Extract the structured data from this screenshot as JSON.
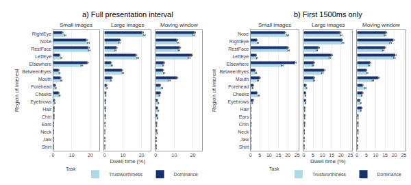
{
  "chart_data": [
    {
      "type": "bar",
      "orientation": "horizontal",
      "title": "Small images",
      "ylabel": "Region of interest",
      "categories": [
        "RightEye",
        "Nose",
        "RestFace",
        "LeftEye",
        "Elsewhere",
        "BetweenEyes",
        "Mouth",
        "Forehead",
        "Cheeks",
        "Eyebrows",
        "Hair",
        "Chin",
        "Ears",
        "Neck",
        "Jaw",
        "Shirt"
      ],
      "series": [
        {
          "name": "Trustworthiness",
          "color": "#add8e6",
          "values": [
            6.5,
            19.0,
            19.5,
            4.5,
            15.5,
            3.5,
            4.5,
            1.5,
            3.5,
            1.0,
            0.5,
            0.5,
            0.3,
            0.2,
            0.2,
            0.2
          ],
          "errors": [
            0.4,
            0.5,
            0.5,
            0.3,
            0.5,
            0.3,
            0.3,
            0.2,
            0.3,
            0.15,
            0.1,
            0.1,
            0.08,
            0.05,
            0.05,
            0.05
          ]
        },
        {
          "name": "Dominance",
          "color": "#19316b",
          "values": [
            5.0,
            18.0,
            19.0,
            3.5,
            18.5,
            3.0,
            4.0,
            1.2,
            3.0,
            0.8,
            0.4,
            0.4,
            0.3,
            0.2,
            0.2,
            0.2
          ],
          "errors": [
            0.35,
            0.5,
            0.5,
            0.3,
            0.5,
            0.25,
            0.3,
            0.2,
            0.28,
            0.12,
            0.1,
            0.1,
            0.08,
            0.05,
            0.05,
            0.05
          ]
        }
      ],
      "xlim": [
        0,
        25
      ],
      "xticks": [
        0,
        10,
        20
      ],
      "grid": true
    },
    {
      "type": "bar",
      "orientation": "horizontal",
      "title": "Large images",
      "xlabel": "Dwell time (%)",
      "annotations": [
        {
          "text": "a) Full presentation interval"
        }
      ],
      "tick_labels": "x",
      "categories": [
        "RightEye",
        "Nose",
        "RestFace",
        "LeftEye",
        "Elsewhere",
        "BetweenEyes",
        "Mouth",
        "Forehead",
        "Cheeks",
        "Eyebrows",
        "Hair",
        "Chin",
        "Ears",
        "Neck",
        "Jaw",
        "Shirt"
      ],
      "series": [
        {
          "name": "Trustworthiness",
          "color": "#add8e6",
          "values": [
            21.5,
            8.0,
            6.0,
            18.0,
            4.0,
            10.0,
            3.5,
            1.5,
            0.8,
            0.5,
            0.5,
            0.4,
            0.3,
            0.2,
            0.2,
            0.2
          ],
          "errors": [
            0.5,
            0.4,
            0.35,
            0.5,
            0.3,
            0.45,
            0.3,
            0.2,
            0.12,
            0.1,
            0.1,
            0.1,
            0.08,
            0.05,
            0.05,
            0.05
          ]
        },
        {
          "name": "Dominance",
          "color": "#19316b",
          "values": [
            20.5,
            8.5,
            6.5,
            17.0,
            3.5,
            9.5,
            4.0,
            1.2,
            0.8,
            0.5,
            0.4,
            0.4,
            0.3,
            0.2,
            0.2,
            0.2
          ],
          "errors": [
            0.5,
            0.4,
            0.35,
            0.5,
            0.28,
            0.42,
            0.3,
            0.18,
            0.12,
            0.1,
            0.1,
            0.1,
            0.08,
            0.05,
            0.05,
            0.05
          ]
        }
      ],
      "xlim": [
        0,
        25
      ],
      "xticks": [
        0,
        10,
        20
      ],
      "grid": true
    },
    {
      "type": "bar",
      "orientation": "horizontal",
      "title": "Moving window",
      "tick_labels": "x",
      "legend": "lower right",
      "legend_title": "Task",
      "categories": [
        "RightEye",
        "Nose",
        "RestFace",
        "LeftEye",
        "Elsewhere",
        "BetweenEyes",
        "Mouth",
        "Forehead",
        "Cheeks",
        "Eyebrows",
        "Hair",
        "Chin",
        "Ears",
        "Neck",
        "Jaw",
        "Shirt"
      ],
      "series": [
        {
          "name": "Trustworthiness",
          "color": "#add8e6",
          "values": [
            20.5,
            12.0,
            12.5,
            18.0,
            4.0,
            4.5,
            7.5,
            3.5,
            2.0,
            1.5,
            1.5,
            1.0,
            0.5,
            0.8,
            0.3,
            0.3
          ],
          "errors": [
            0.5,
            0.45,
            0.45,
            0.5,
            0.3,
            0.32,
            0.4,
            0.28,
            0.2,
            0.18,
            0.18,
            0.15,
            0.1,
            0.12,
            0.07,
            0.07
          ]
        },
        {
          "name": "Dominance",
          "color": "#19316b",
          "values": [
            21.0,
            11.5,
            13.0,
            19.5,
            4.5,
            4.0,
            11.5,
            2.5,
            2.5,
            1.0,
            1.0,
            0.8,
            0.5,
            0.5,
            0.3,
            0.3
          ],
          "errors": [
            0.5,
            0.45,
            0.45,
            0.5,
            0.32,
            0.3,
            0.5,
            0.22,
            0.22,
            0.15,
            0.15,
            0.12,
            0.1,
            0.1,
            0.07,
            0.07
          ]
        }
      ],
      "xlim": [
        0,
        25
      ],
      "xticks": [
        0,
        10,
        20
      ],
      "grid": true
    },
    {
      "type": "bar",
      "orientation": "horizontal",
      "title": "Small images",
      "ylabel": "Region of interest",
      "categories": [
        "Nose",
        "RightEye",
        "RestFace",
        "LeftEye",
        "Elsewhere",
        "BetweenEyes",
        "Mouth",
        "Forehead",
        "Cheeks",
        "Eyebrows",
        "Hair",
        "Ears",
        "Chin",
        "Neck",
        "Jaw",
        "Shirt"
      ],
      "series": [
        {
          "name": "Trustworthiness",
          "color": "#add8e6",
          "values": [
            20.0,
            4.0,
            20.5,
            3.5,
            17.0,
            3.0,
            4.0,
            1.2,
            4.5,
            1.0,
            0.3,
            0.3,
            0.3,
            0.2,
            0.2,
            0.2
          ],
          "errors": [
            0.5,
            0.3,
            0.5,
            0.28,
            0.5,
            0.25,
            0.3,
            0.18,
            0.32,
            0.15,
            0.08,
            0.08,
            0.08,
            0.05,
            0.05,
            0.05
          ]
        },
        {
          "name": "Dominance",
          "color": "#19316b",
          "values": [
            18.5,
            3.5,
            20.0,
            3.0,
            24.0,
            2.5,
            5.0,
            1.5,
            3.5,
            1.5,
            0.3,
            0.3,
            0.3,
            0.2,
            0.2,
            0.2
          ],
          "errors": [
            0.5,
            0.28,
            0.5,
            0.25,
            0.55,
            0.22,
            0.32,
            0.2,
            0.28,
            0.18,
            0.08,
            0.08,
            0.08,
            0.05,
            0.05,
            0.05
          ]
        }
      ],
      "xlim": [
        0,
        26
      ],
      "xticks": [
        0,
        5,
        10,
        15,
        20,
        25
      ],
      "grid": true
    },
    {
      "type": "bar",
      "orientation": "horizontal",
      "title": "Large images",
      "xlabel": "Dwell time (%)",
      "annotations": [
        {
          "text": "b) First 1500ms only"
        }
      ],
      "tick_labels": "x",
      "categories": [
        "Nose",
        "RightEye",
        "RestFace",
        "LeftEye",
        "Elsewhere",
        "BetweenEyes",
        "Mouth",
        "Forehead",
        "Cheeks",
        "Eyebrows",
        "Hair",
        "Ears",
        "Chin",
        "Neck",
        "Jaw",
        "Shirt"
      ],
      "series": [
        {
          "name": "Trustworthiness",
          "color": "#add8e6",
          "values": [
            20.0,
            21.0,
            7.0,
            14.0,
            5.0,
            10.0,
            5.5,
            1.5,
            1.0,
            1.0,
            0.5,
            0.5,
            0.4,
            0.3,
            0.2,
            0.2
          ],
          "errors": [
            0.5,
            0.5,
            0.4,
            0.48,
            0.35,
            0.45,
            0.35,
            0.2,
            0.15,
            0.15,
            0.1,
            0.1,
            0.09,
            0.07,
            0.05,
            0.05
          ]
        },
        {
          "name": "Dominance",
          "color": "#19316b",
          "values": [
            19.5,
            20.5,
            8.0,
            15.0,
            5.5,
            11.0,
            5.5,
            1.2,
            1.0,
            1.0,
            0.5,
            0.5,
            0.4,
            0.3,
            0.2,
            0.2
          ],
          "errors": [
            0.5,
            0.5,
            0.4,
            0.48,
            0.35,
            0.48,
            0.35,
            0.18,
            0.15,
            0.15,
            0.1,
            0.1,
            0.09,
            0.07,
            0.05,
            0.05
          ]
        }
      ],
      "xlim": [
        0,
        26
      ],
      "xticks": [
        0,
        5,
        10,
        15,
        20,
        25
      ],
      "grid": true
    },
    {
      "type": "bar",
      "orientation": "horizontal",
      "title": "Moving window",
      "tick_labels": "x",
      "legend": "lower right",
      "legend_title": "Task",
      "categories": [
        "Nose",
        "RightEye",
        "RestFace",
        "LeftEye",
        "Elsewhere",
        "BetweenEyes",
        "Mouth",
        "Forehead",
        "Cheeks",
        "Eyebrows",
        "Hair",
        "Ears",
        "Chin",
        "Neck",
        "Jaw",
        "Shirt"
      ],
      "series": [
        {
          "name": "Trustworthiness",
          "color": "#add8e6",
          "values": [
            15.0,
            18.0,
            14.0,
            20.0,
            6.5,
            5.5,
            8.5,
            4.5,
            2.5,
            2.0,
            2.0,
            0.5,
            0.5,
            0.5,
            0.3,
            0.3
          ],
          "errors": [
            0.45,
            0.5,
            0.45,
            0.5,
            0.38,
            0.35,
            0.42,
            0.32,
            0.22,
            0.2,
            0.2,
            0.1,
            0.1,
            0.1,
            0.07,
            0.07
          ]
        },
        {
          "name": "Dominance",
          "color": "#19316b",
          "values": [
            15.5,
            19.5,
            15.0,
            20.5,
            7.0,
            5.0,
            11.5,
            3.0,
            3.0,
            1.5,
            2.5,
            0.5,
            0.5,
            0.5,
            0.3,
            0.3
          ],
          "errors": [
            0.45,
            0.5,
            0.45,
            0.5,
            0.4,
            0.32,
            0.5,
            0.25,
            0.25,
            0.18,
            0.22,
            0.1,
            0.1,
            0.1,
            0.07,
            0.07
          ]
        }
      ],
      "xlim": [
        0,
        26
      ],
      "xticks": [
        0,
        5,
        10,
        15,
        20,
        25
      ],
      "grid": true
    }
  ]
}
